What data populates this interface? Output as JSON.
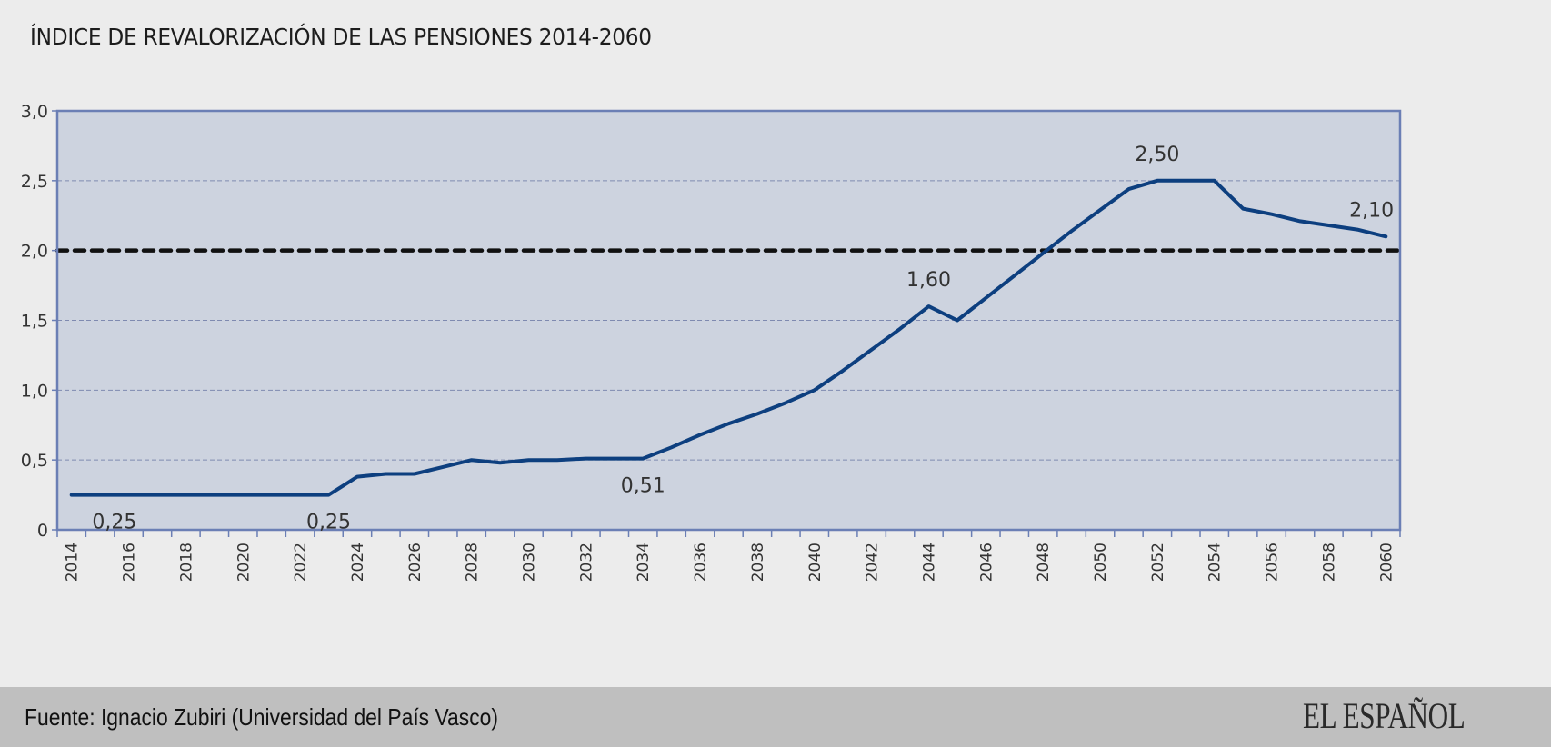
{
  "chart_data": {
    "type": "line",
    "title": "ÍNDICE DE REVALORIZACIÓN DE LAS PENSIONES 2014-2060",
    "xlabel": "",
    "ylabel": "",
    "x": [
      2014,
      2015,
      2016,
      2017,
      2018,
      2019,
      2020,
      2021,
      2022,
      2023,
      2024,
      2025,
      2026,
      2027,
      2028,
      2029,
      2030,
      2031,
      2032,
      2033,
      2034,
      2035,
      2036,
      2037,
      2038,
      2039,
      2040,
      2041,
      2042,
      2043,
      2044,
      2045,
      2046,
      2047,
      2048,
      2049,
      2050,
      2051,
      2052,
      2053,
      2054,
      2055,
      2056,
      2057,
      2058,
      2059,
      2060
    ],
    "x_tick_labels": [
      "2014",
      "2016",
      "2018",
      "2020",
      "2022",
      "2024",
      "2026",
      "2028",
      "2030",
      "2032",
      "2034",
      "2036",
      "2038",
      "2040",
      "2042",
      "2044",
      "2046",
      "2048",
      "2050",
      "2052",
      "2054",
      "2056",
      "2058",
      "2060"
    ],
    "y_tick_labels": [
      "0",
      "0,5",
      "1,0",
      "1,5",
      "2,0",
      "2,5",
      "3,0"
    ],
    "y_ticks": [
      0,
      0.5,
      1.0,
      1.5,
      2.0,
      2.5,
      3.0
    ],
    "ylim": [
      0,
      3.0
    ],
    "grid": true,
    "series": [
      {
        "name": "Índice de revalorización",
        "color": "#0d3f7f",
        "values": [
          0.25,
          0.25,
          0.25,
          0.25,
          0.25,
          0.25,
          0.25,
          0.25,
          0.25,
          0.25,
          0.38,
          0.4,
          0.4,
          0.45,
          0.5,
          0.48,
          0.5,
          0.5,
          0.51,
          0.51,
          0.51,
          0.59,
          0.68,
          0.76,
          0.83,
          0.91,
          1.0,
          1.14,
          1.29,
          1.44,
          1.6,
          1.5,
          1.66,
          1.82,
          1.98,
          2.14,
          2.29,
          2.44,
          2.5,
          2.5,
          2.5,
          2.3,
          2.26,
          2.21,
          2.18,
          2.15,
          2.1
        ]
      }
    ],
    "reference_line": {
      "value": 2.0,
      "style": "dashed",
      "color": "#111111"
    },
    "annotations": [
      {
        "text": "0,25",
        "x": 2015.5,
        "y": 0.25,
        "position": "below"
      },
      {
        "text": "0,25",
        "x": 2023,
        "y": 0.25,
        "position": "below"
      },
      {
        "text": "0,51",
        "x": 2034,
        "y": 0.51,
        "position": "below"
      },
      {
        "text": "1,60",
        "x": 2044,
        "y": 1.6,
        "position": "above"
      },
      {
        "text": "2,50",
        "x": 2052,
        "y": 2.5,
        "position": "above"
      },
      {
        "text": "2,10",
        "x": 2059.5,
        "y": 2.1,
        "position": "above"
      }
    ],
    "colors": {
      "plot_background": "#cdd3df",
      "axis": "#6b7fb5",
      "grid": "#7f8ab0",
      "page_background": "#ececec"
    }
  },
  "footer": {
    "source": "Fuente: Ignacio Zubiri (Universidad del País Vasco)",
    "brand": "EL ESPAÑOL"
  }
}
